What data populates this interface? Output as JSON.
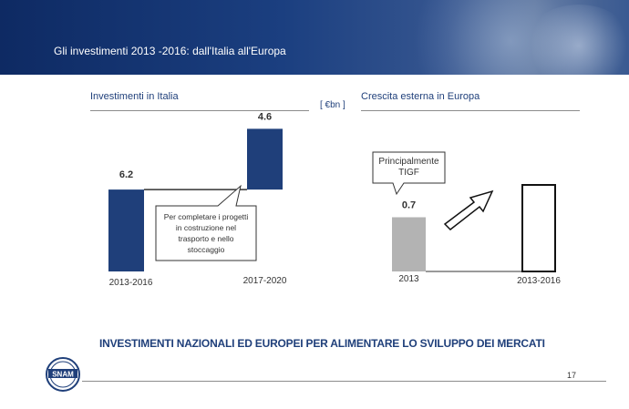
{
  "slide": {
    "title": "Gli investimenti 2013 -2016: dall'Italia all'Europa",
    "unit": "[ €bn ]",
    "headline": "INVESTIMENTI NAZIONALI ED EUROPEI PER ALIMENTARE LO SVILUPPO DEI MERCATI",
    "page_number": "17",
    "logo_text": "SNAM"
  },
  "colors": {
    "header": "#1b3f80",
    "bar_italy": "#1f3f7a",
    "bar_europe": "#b3b3b3",
    "title_text": "#1f3f7a"
  },
  "chart_data": [
    {
      "type": "bar",
      "title": "Investimenti in Italia",
      "categories": [
        "2013-2016",
        "2017-2020"
      ],
      "values": [
        6.2,
        4.6
      ],
      "data_labels": [
        "6.2",
        "4.6"
      ],
      "callout": "Per completare i progetti in costruzione nel trasporto e nello stoccaggio"
    },
    {
      "type": "bar",
      "title": "Crescita esterna in Europa",
      "categories": [
        "2013",
        "2013-2016"
      ],
      "values": [
        0.7,
        null
      ],
      "data_labels": [
        "0.7",
        ""
      ],
      "callout": "Principalmente TIGF"
    }
  ]
}
